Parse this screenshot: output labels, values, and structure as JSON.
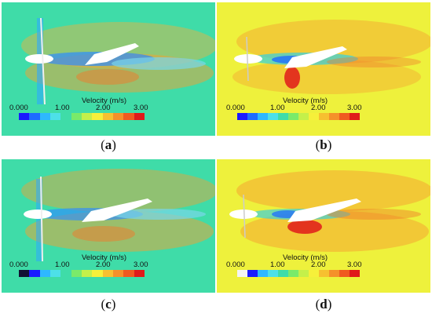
{
  "panels": [
    {
      "id": "a",
      "caption_letter": "a",
      "background": "#3fdca8",
      "legend_title": "Velocity (m/s)",
      "ticks": [
        "0.000",
        "1.00",
        "2.00",
        "3.00"
      ],
      "colorbar": [
        "#1a1aff",
        "#1e6cff",
        "#2eb8ff",
        "#4de0e8",
        "#3fdca8",
        "#7aea6a",
        "#c4f04a",
        "#f6f03a",
        "#f7c030",
        "#f5902a",
        "#f05a20",
        "#e01a1a"
      ]
    },
    {
      "id": "b",
      "caption_letter": "b",
      "background": "#eef13c",
      "legend_title": "Velocity (m/s)",
      "ticks": [
        "0.000",
        "1.00",
        "2.00",
        "3.00"
      ],
      "colorbar": [
        "#1a1aff",
        "#1e6cff",
        "#2eb8ff",
        "#4de0e8",
        "#3fdca8",
        "#7aea6a",
        "#c4f04a",
        "#f6f03a",
        "#f7c030",
        "#f5902a",
        "#f05a20",
        "#e01a1a"
      ]
    },
    {
      "id": "c",
      "caption_letter": "c",
      "background": "#3fdca8",
      "legend_title": "Velocity (m/s)",
      "ticks": [
        "0.000",
        "1.00",
        "2.00",
        "3.00"
      ],
      "colorbar": [
        "#111133",
        "#1a1aff",
        "#2eb8ff",
        "#4de0e8",
        "#3fdca8",
        "#7aea6a",
        "#c4f04a",
        "#f6f03a",
        "#f7c030",
        "#f5902a",
        "#f05a20",
        "#e01a1a"
      ]
    },
    {
      "id": "d",
      "caption_letter": "d",
      "background": "#eef13c",
      "legend_title": "Velocity (m/s)",
      "ticks": [
        "0.000",
        "1.00",
        "2.00",
        "3.00"
      ],
      "colorbar": [
        "#f4f4f4",
        "#1a1aff",
        "#2eb8ff",
        "#4de0e8",
        "#3fdca8",
        "#7aea6a",
        "#c4f04a",
        "#f6f03a",
        "#f7c030",
        "#f5902a",
        "#f05a20",
        "#e01a1a"
      ]
    }
  ]
}
